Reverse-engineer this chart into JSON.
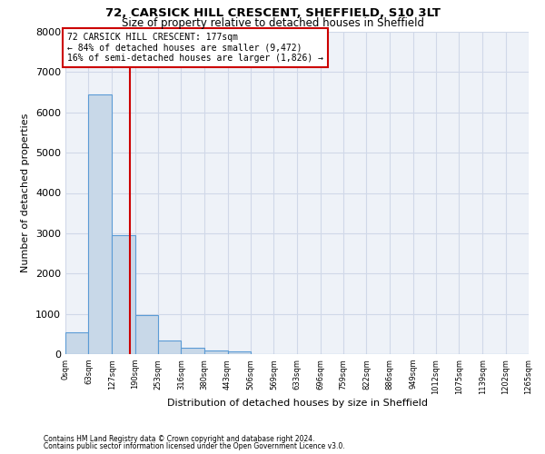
{
  "title1": "72, CARSICK HILL CRESCENT, SHEFFIELD, S10 3LT",
  "title2": "Size of property relative to detached houses in Sheffield",
  "xlabel": "Distribution of detached houses by size in Sheffield",
  "ylabel": "Number of detached properties",
  "footnote1": "Contains HM Land Registry data © Crown copyright and database right 2024.",
  "footnote2": "Contains public sector information licensed under the Open Government Licence v3.0.",
  "bin_edges": [
    0,
    63,
    127,
    190,
    253,
    316,
    380,
    443,
    506,
    569,
    633,
    696,
    759,
    822,
    886,
    949,
    1012,
    1075,
    1139,
    1202,
    1265
  ],
  "bar_heights": [
    550,
    6450,
    2950,
    975,
    340,
    160,
    100,
    65,
    0,
    0,
    0,
    0,
    0,
    0,
    0,
    0,
    0,
    0,
    0,
    0
  ],
  "bar_color": "#c8d8e8",
  "bar_edge_color": "#5b9bd5",
  "grid_color": "#d0d8e8",
  "bg_color": "#eef2f8",
  "vline_x": 177,
  "vline_color": "#cc0000",
  "annotation_line1": "72 CARSICK HILL CRESCENT: 177sqm",
  "annotation_line2": "← 84% of detached houses are smaller (9,472)",
  "annotation_line3": "16% of semi-detached houses are larger (1,826) →",
  "annotation_box_color": "#ffffff",
  "annotation_box_edge": "#cc0000",
  "ylim": [
    0,
    8000
  ],
  "yticks": [
    0,
    1000,
    2000,
    3000,
    4000,
    5000,
    6000,
    7000,
    8000
  ],
  "tick_labels": [
    "0sqm",
    "63sqm",
    "127sqm",
    "190sqm",
    "253sqm",
    "316sqm",
    "380sqm",
    "443sqm",
    "506sqm",
    "569sqm",
    "633sqm",
    "696sqm",
    "759sqm",
    "822sqm",
    "886sqm",
    "949sqm",
    "1012sqm",
    "1075sqm",
    "1139sqm",
    "1202sqm",
    "1265sqm"
  ]
}
